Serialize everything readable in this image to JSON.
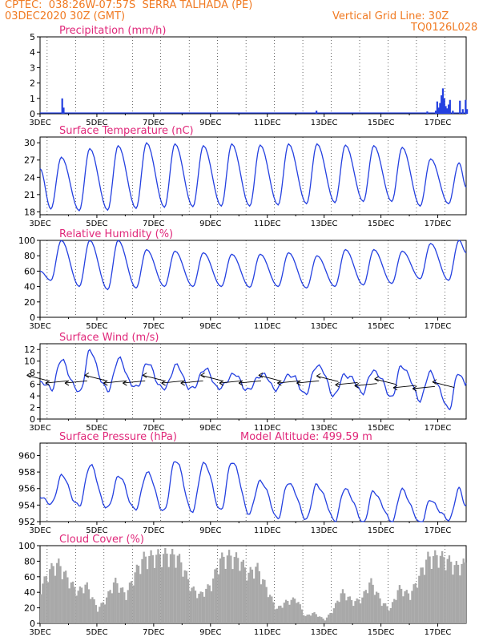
{
  "header": {
    "line1": "CPTEC:  038:26W-07:57S  SERRA TALHADA (PE)",
    "line2": "03DEC2020 30Z (GMT)",
    "grid_note": "Vertical Grid Line: 30Z",
    "code": "TQ0126L028"
  },
  "colors": {
    "header": "#f07a22",
    "title": "#e0287a",
    "line": "#2440e0",
    "cloud": "#a8a8a8"
  },
  "x_ticks": [
    "3DEC",
    "5DEC",
    "7DEC",
    "9DEC",
    "11DEC",
    "13DEC",
    "15DEC",
    "17DEC"
  ],
  "chart_data": [
    {
      "id": "precip",
      "type": "bar",
      "title": "Precipitation (mm/h)",
      "ylim": [
        0,
        5
      ],
      "yticks": [
        0,
        1,
        2,
        3,
        4,
        5
      ],
      "x_unit": "days since 3DEC 00Z",
      "x_range": [
        0,
        15
      ],
      "bars": [
        [
          0.75,
          1.0
        ],
        [
          0.8,
          0.4
        ],
        [
          9.7,
          0.2
        ],
        [
          13.6,
          0.15
        ],
        [
          13.9,
          0.2
        ],
        [
          13.95,
          0.8
        ],
        [
          14.0,
          0.4
        ],
        [
          14.05,
          0.7
        ],
        [
          14.1,
          1.2
        ],
        [
          14.15,
          1.65
        ],
        [
          14.2,
          1.0
        ],
        [
          14.25,
          0.5
        ],
        [
          14.3,
          0.35
        ],
        [
          14.35,
          0.6
        ],
        [
          14.4,
          0.9
        ],
        [
          14.5,
          0.2
        ],
        [
          14.75,
          0.85
        ],
        [
          14.85,
          0.3
        ],
        [
          14.95,
          0.9
        ],
        [
          15.0,
          0.3
        ]
      ]
    },
    {
      "id": "temp",
      "type": "line",
      "title": "Surface Temperature (nC)",
      "ylim": [
        17.5,
        31
      ],
      "yticks": [
        18,
        21,
        24,
        27,
        30
      ],
      "x_range": [
        0,
        15
      ],
      "daily_max": [
        27.5,
        29,
        29.5,
        30,
        29.8,
        29.5,
        29.8,
        29.6,
        29.8,
        29.8,
        29.6,
        29.5,
        29.2,
        27.2,
        26.5
      ],
      "daily_min": [
        18.5,
        18.2,
        18.3,
        18.6,
        18.8,
        18.9,
        19.0,
        19.0,
        19.2,
        19.4,
        19.6,
        19.8,
        19.8,
        19.0,
        19.4
      ],
      "start": 25.5,
      "end": 22.3
    },
    {
      "id": "rh",
      "type": "line",
      "title": "Relative Humidity (%)",
      "ylim": [
        0,
        100
      ],
      "yticks": [
        0,
        20,
        40,
        60,
        80,
        100
      ],
      "x_range": [
        0,
        15
      ],
      "daily_max": [
        100,
        100,
        100,
        88,
        86,
        84,
        82,
        82,
        84,
        80,
        88,
        88,
        86,
        96,
        100
      ],
      "daily_min": [
        48,
        40,
        36,
        38,
        40,
        40,
        40,
        39,
        40,
        38,
        40,
        42,
        44,
        50,
        48
      ],
      "start": 60,
      "end": 84
    },
    {
      "id": "wind",
      "type": "line",
      "title": "Surface Wind (m/s)",
      "ylim": [
        0,
        13
      ],
      "yticks": [
        0,
        2,
        4,
        6,
        8,
        10,
        12
      ],
      "x_range": [
        0,
        15
      ],
      "daily_max": [
        10.0,
        11.5,
        10.2,
        9.5,
        9.2,
        8.6,
        7.8,
        7.8,
        7.8,
        9.5,
        7.8,
        8.5,
        9.2,
        8.0,
        7.8
      ],
      "daily_min": [
        5.2,
        4.5,
        4.8,
        5.2,
        5.0,
        5.0,
        5.2,
        5.0,
        5.2,
        4.5,
        4.2,
        4.8,
        4.0,
        3.5,
        2.0
      ],
      "start": 6.5,
      "end": 6.2
    },
    {
      "id": "pressure",
      "type": "line",
      "title": "Surface Pressure (hPa)",
      "annotation": "Model Altitude: 499.59 m",
      "ylim": [
        952,
        961.5
      ],
      "yticks": [
        952,
        954,
        956,
        958,
        960
      ],
      "x_range": [
        0,
        15
      ],
      "daily_max": [
        957.5,
        958.8,
        957.5,
        958.0,
        959.5,
        959.2,
        959.4,
        957.0,
        956.8,
        956.5,
        956.0,
        955.6,
        955.8,
        954.5,
        955.8
      ],
      "daily_min": [
        954.0,
        953.8,
        953.5,
        953.4,
        953.2,
        953.2,
        953.4,
        953.0,
        952.5,
        952.4,
        952.2,
        952.0,
        952.0,
        951.8,
        952.2
      ],
      "start": 955.2,
      "end": 954.0
    },
    {
      "id": "cloud",
      "type": "bar",
      "title": "Cloud Cover (%)",
      "ylim": [
        0,
        100
      ],
      "yticks": [
        0,
        20,
        40,
        60,
        80,
        100
      ],
      "x_range": [
        0,
        15
      ],
      "envelope": [
        [
          0,
          50
        ],
        [
          0.3,
          75
        ],
        [
          0.6,
          85
        ],
        [
          1.0,
          60
        ],
        [
          1.3,
          45
        ],
        [
          1.6,
          55
        ],
        [
          2.0,
          20
        ],
        [
          2.3,
          35
        ],
        [
          2.6,
          60
        ],
        [
          3.0,
          40
        ],
        [
          3.3,
          70
        ],
        [
          3.6,
          92
        ],
        [
          4.0,
          95
        ],
        [
          4.4,
          97
        ],
        [
          4.8,
          95
        ],
        [
          5.0,
          80
        ],
        [
          5.3,
          50
        ],
        [
          5.6,
          40
        ],
        [
          6.0,
          55
        ],
        [
          6.3,
          90
        ],
        [
          6.6,
          95
        ],
        [
          7.0,
          90
        ],
        [
          7.3,
          70
        ],
        [
          7.6,
          80
        ],
        [
          8.0,
          45
        ],
        [
          8.3,
          20
        ],
        [
          8.6,
          30
        ],
        [
          9.0,
          35
        ],
        [
          9.3,
          10
        ],
        [
          9.6,
          15
        ],
        [
          10.0,
          5
        ],
        [
          10.3,
          20
        ],
        [
          10.6,
          45
        ],
        [
          11.0,
          30
        ],
        [
          11.3,
          35
        ],
        [
          11.6,
          60
        ],
        [
          12.0,
          30
        ],
        [
          12.3,
          20
        ],
        [
          12.6,
          50
        ],
        [
          13.0,
          40
        ],
        [
          13.3,
          65
        ],
        [
          13.6,
          92
        ],
        [
          14.0,
          95
        ],
        [
          14.3,
          90
        ],
        [
          14.6,
          80
        ],
        [
          15.0,
          85
        ]
      ]
    }
  ]
}
